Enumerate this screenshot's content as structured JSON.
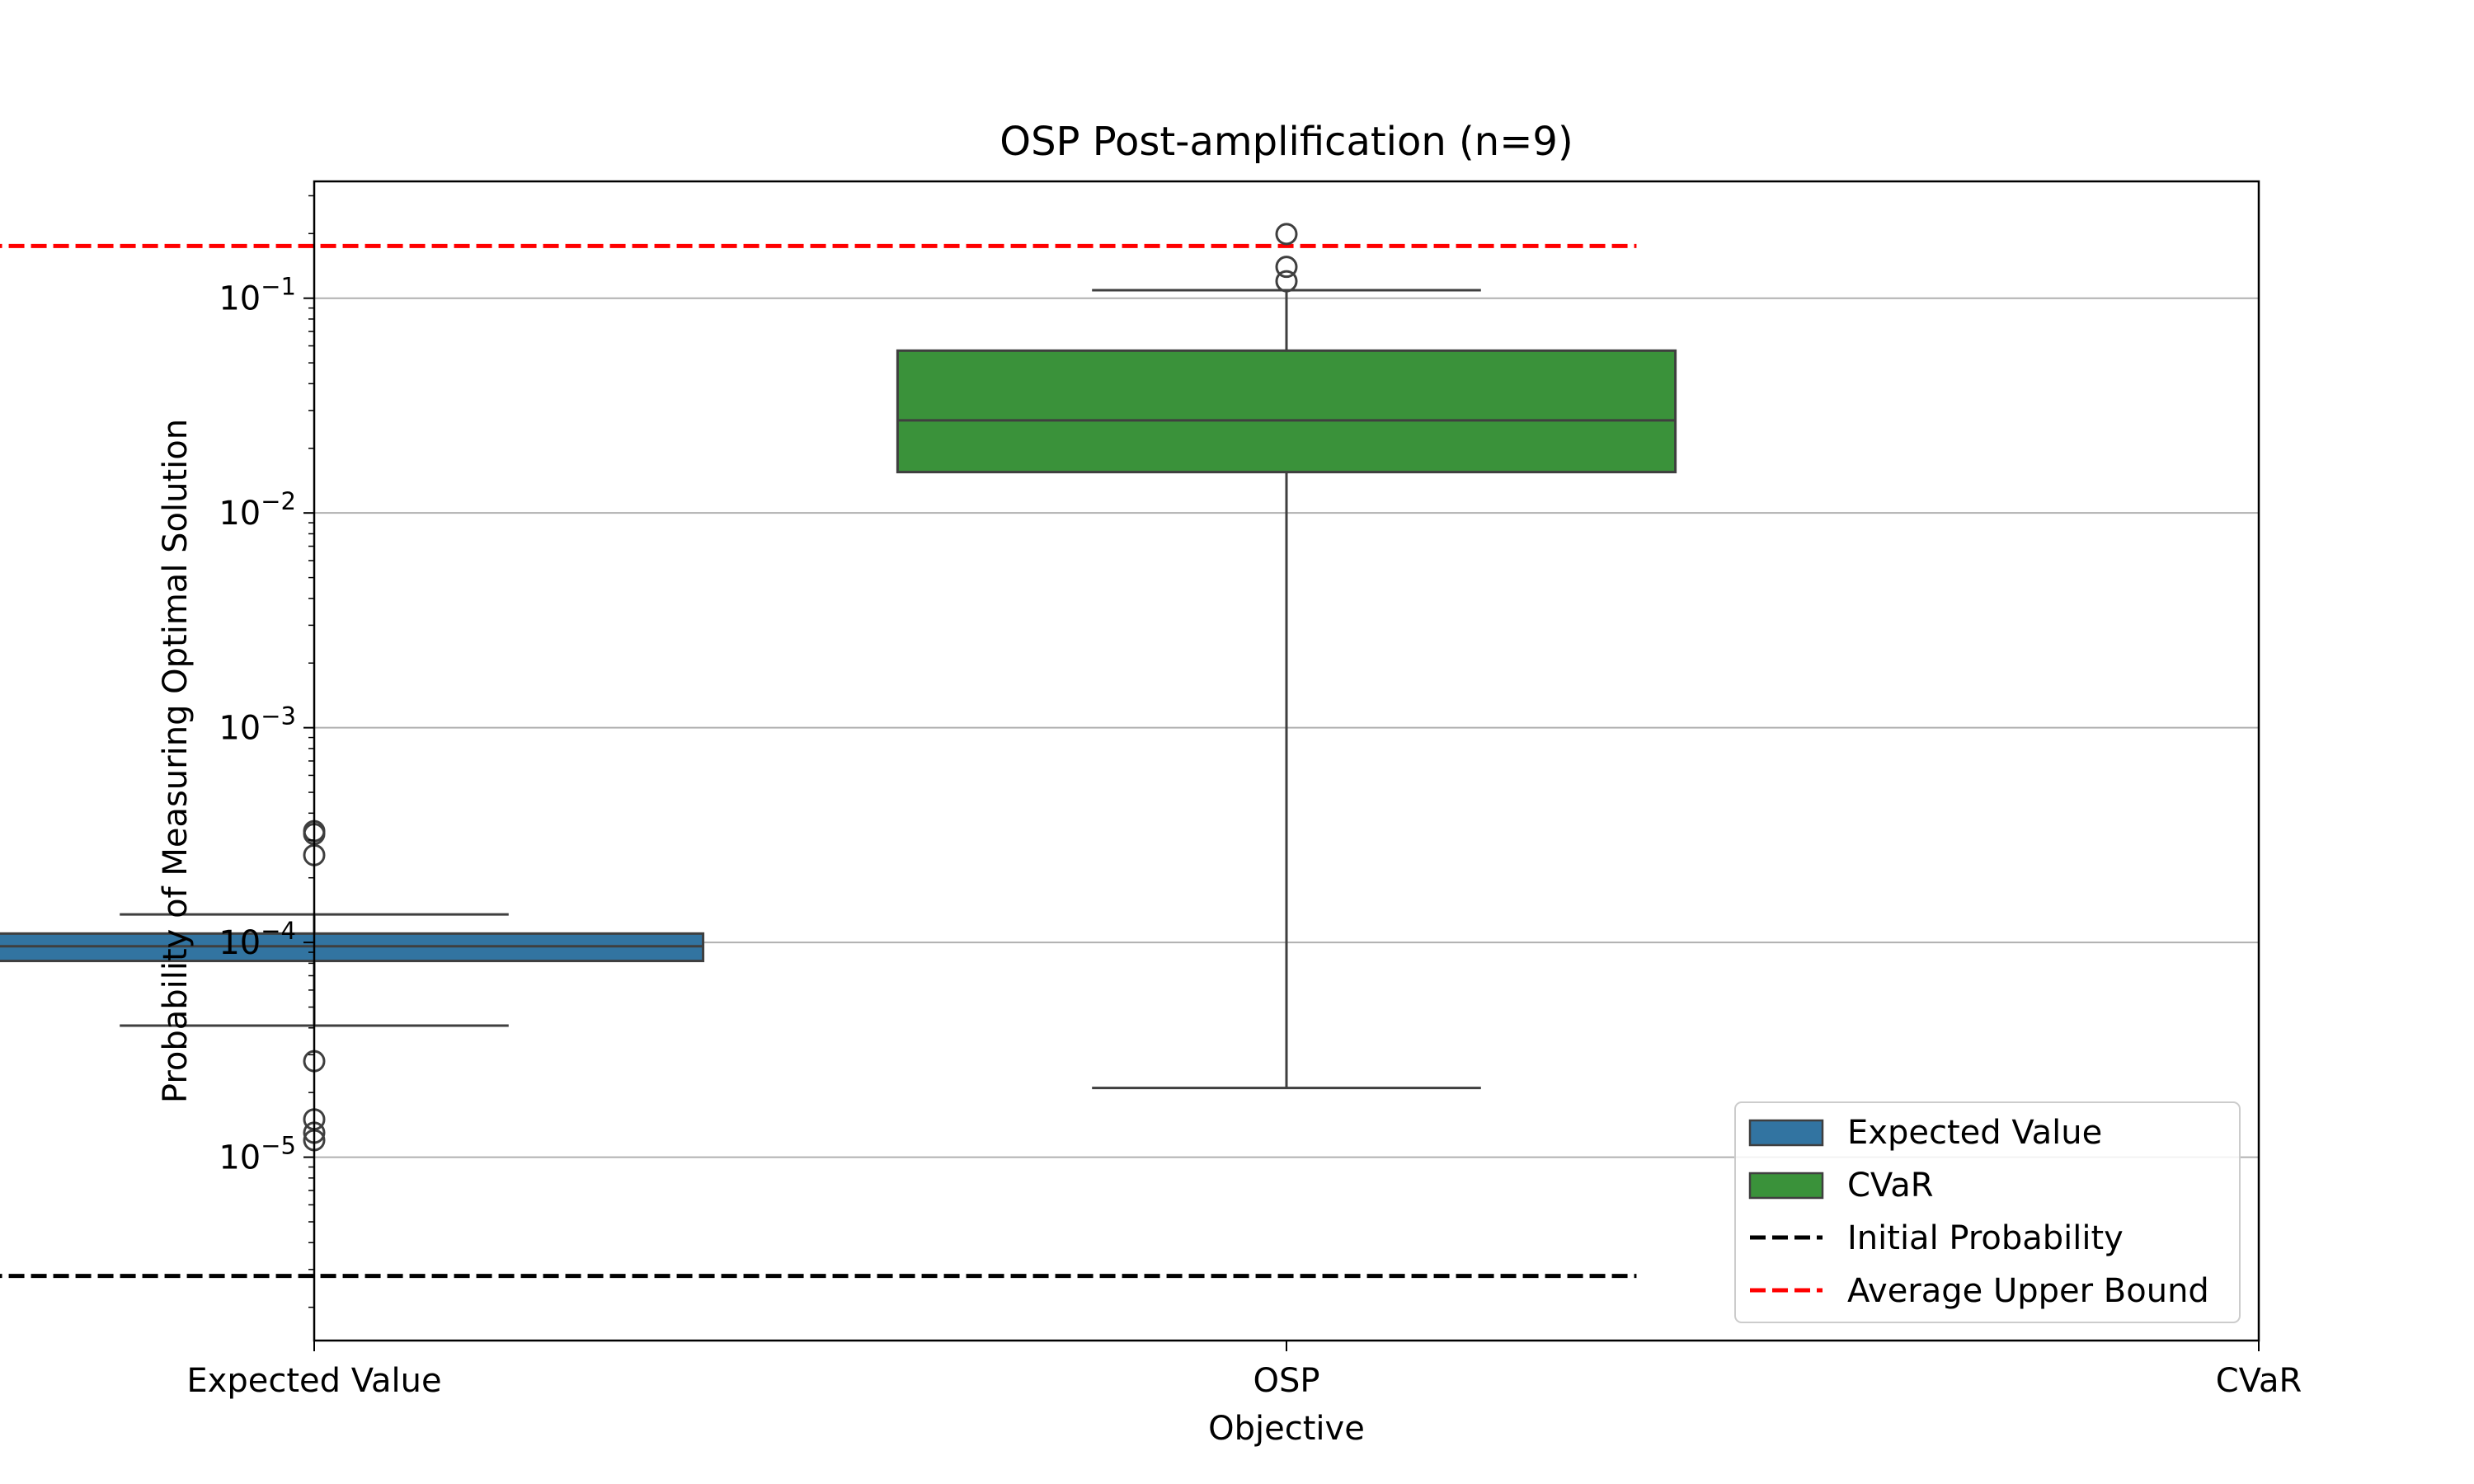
{
  "chart_data": {
    "type": "box",
    "title": "OSP Post-amplification (n=9)",
    "xlabel": "Objective",
    "ylabel": "Probability of Measuring Optimal Solution",
    "yscale": "log",
    "ylim": [
      1.4e-06,
      0.35
    ],
    "grid": "y",
    "categories": [
      "Expected Value",
      "OSP",
      "CVaR"
    ],
    "y_ticks": [
      {
        "value": 1e-05,
        "base": "10",
        "exp": "−5"
      },
      {
        "value": 0.0001,
        "base": "10",
        "exp": "−4"
      },
      {
        "value": 0.001,
        "base": "10",
        "exp": "−3"
      },
      {
        "value": 0.01,
        "base": "10",
        "exp": "−2"
      },
      {
        "value": 0.1,
        "base": "10",
        "exp": "−1"
      }
    ],
    "boxes": [
      {
        "name": "Expected Value",
        "category": "Expected Value",
        "color": "#3274a1",
        "whisker_low": 4.1e-05,
        "q1": 8.2e-05,
        "median": 9.6e-05,
        "q3": 0.00011,
        "whisker_high": 0.000135,
        "outliers": [
          0.00033,
          0.00032,
          0.000255,
          2.8e-05,
          1.5e-05,
          1.3e-05,
          1.2e-05
        ]
      },
      {
        "name": "CVaR",
        "category": "OSP",
        "color": "#3a923a",
        "whisker_low": 2.1e-05,
        "q1": 0.0155,
        "median": 0.027,
        "q3": 0.057,
        "whisker_high": 0.109,
        "outliers": [
          0.199,
          0.14,
          0.12
        ]
      }
    ],
    "lines": [
      {
        "name": "Initial Probability",
        "value": 2.8e-06,
        "color": "#000000",
        "style": "dashed",
        "x_start": -0.36,
        "x_end": 1.36
      },
      {
        "name": "Average Upper Bound",
        "value": 0.175,
        "color": "#ff0000",
        "style": "dashed",
        "x_start": -0.36,
        "x_end": 1.36
      }
    ],
    "legend": {
      "position": "lower right",
      "entries": [
        {
          "label": "Expected Value",
          "kind": "patch",
          "color": "#3274a1"
        },
        {
          "label": "CVaR",
          "kind": "patch",
          "color": "#3a923a"
        },
        {
          "label": "Initial Probability",
          "kind": "line",
          "color": "#000000"
        },
        {
          "label": "Average Upper Bound",
          "kind": "line",
          "color": "#ff0000"
        }
      ]
    }
  }
}
